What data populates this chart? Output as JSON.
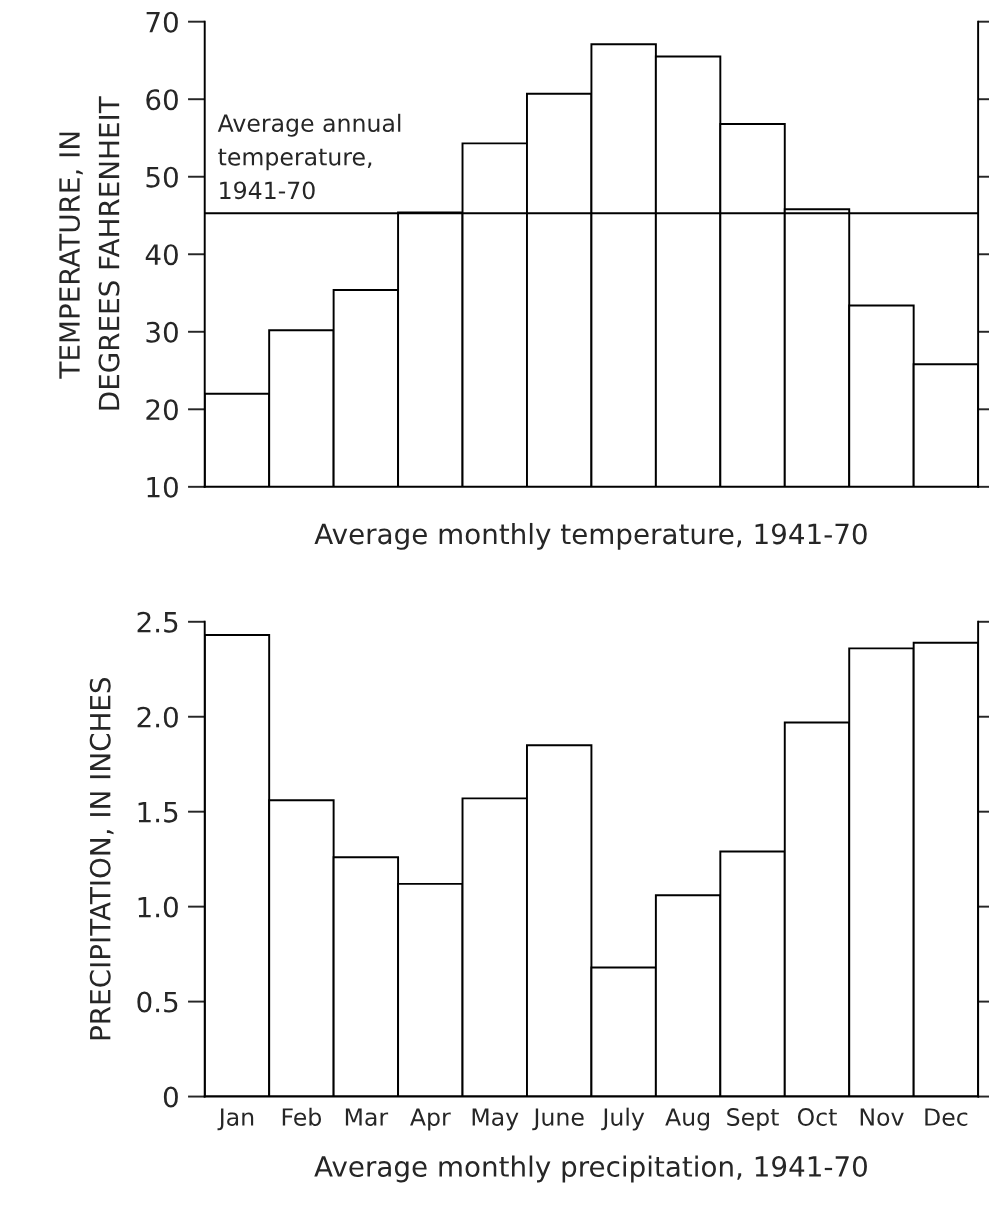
{
  "chart_data": [
    {
      "type": "bar",
      "xlabel": "Average monthly temperature, 1941-70",
      "ylabel": "TEMPERATURE, IN\nDEGREES FAHRENHEIT",
      "categories": [
        null,
        null,
        null,
        null,
        null,
        null,
        null,
        null,
        null,
        null,
        null,
        null
      ],
      "values": [
        22.0,
        30.2,
        35.4,
        45.4,
        54.3,
        60.7,
        67.1,
        65.5,
        56.8,
        45.8,
        33.4,
        25.8
      ],
      "color": "#ffffff",
      "ylim": [
        10,
        70
      ],
      "yticks": [
        10,
        20,
        30,
        40,
        50,
        60,
        70
      ],
      "grid": false,
      "legend": false,
      "ref_lines": [
        {
          "axis": "y",
          "value": 45.3,
          "label": "Average annual\ntemperature,\n1941-70",
          "color": "#000000"
        }
      ]
    },
    {
      "type": "bar",
      "xlabel": "Average monthly precipitation, 1941-70",
      "ylabel": "PRECIPITATION, IN INCHES",
      "categories": [
        "Jan",
        "Feb",
        "Mar",
        "Apr",
        "May",
        "June",
        "July",
        "Aug",
        "Sept",
        "Oct",
        "Nov",
        "Dec"
      ],
      "values": [
        2.43,
        1.56,
        1.26,
        1.12,
        1.57,
        1.85,
        0.68,
        1.06,
        1.29,
        1.97,
        2.36,
        2.39
      ],
      "color": "#ffffff",
      "ylim": [
        0,
        2.5
      ],
      "yticks": [
        0,
        {
          "value": 0.5,
          "label": "0.5"
        },
        {
          "value": 1.0,
          "label": "1.0"
        },
        {
          "value": 1.5,
          "label": "1.5"
        },
        {
          "value": 2.0,
          "label": "2.0"
        },
        2.5
      ],
      "grid": false,
      "legend": false
    }
  ]
}
